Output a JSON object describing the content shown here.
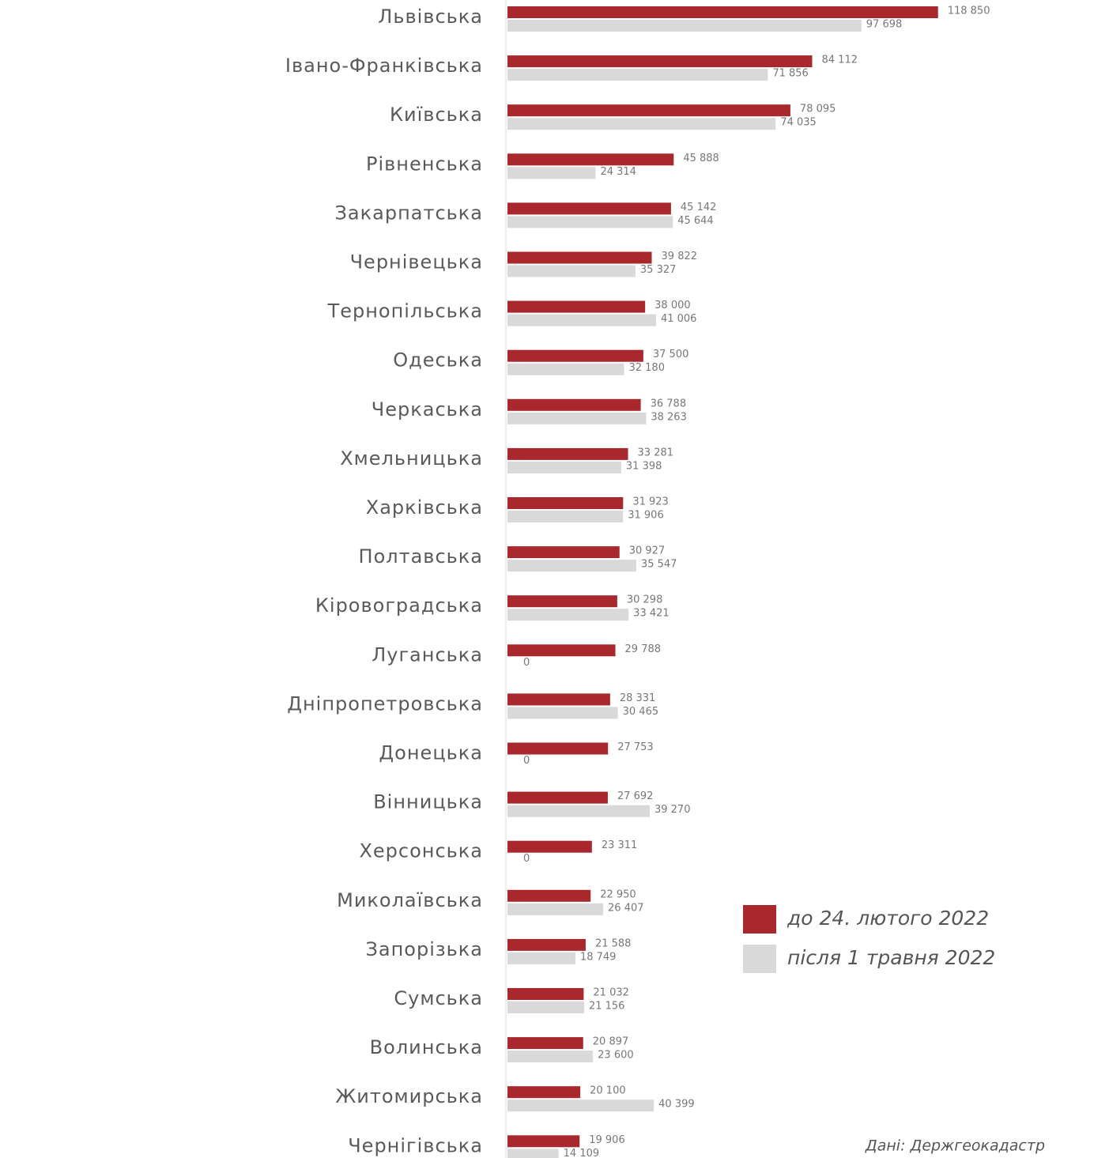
{
  "chart_data": {
    "type": "grouped-barh",
    "categories": [
      "Львівська",
      "Івано-Франківська",
      "Київська",
      "Рівненська",
      "Закарпатська",
      "Чернівецька",
      "Тернопільська",
      "Одеська",
      "Черкаська",
      "Хмельницька",
      "Харківська",
      "Полтавська",
      "Кіровоградська",
      "Луганська",
      "Дніпропетровська",
      "Донецька",
      "Вінницька",
      "Херсонська",
      "Миколаївська",
      "Запорізька",
      "Сумська",
      "Волинська",
      "Житомирська",
      "Чернігівська"
    ],
    "series": [
      {
        "name": "до 24. лютого 2022",
        "color": "#a8282d",
        "values": [
          118850,
          84112,
          78095,
          45888,
          45142,
          39822,
          38000,
          37500,
          36788,
          33281,
          31923,
          30927,
          30298,
          29788,
          28331,
          27753,
          27692,
          23311,
          22950,
          21588,
          21032,
          20897,
          20100,
          19906
        ],
        "value_labels": [
          "118 850",
          "84 112",
          "78 095",
          "45 888",
          "45 142",
          "39 822",
          "38 000",
          "37 500",
          "36 788",
          "33 281",
          "31 923",
          "30 927",
          "30 298",
          "29 788",
          "28 331",
          "27 753",
          "27 692",
          "23 311",
          "22 950",
          "21 588",
          "21 032",
          "20 897",
          "20 100",
          "19 906"
        ]
      },
      {
        "name": "після 1 травня 2022",
        "color": "#d9d9d9",
        "values": [
          97698,
          71856,
          74035,
          24314,
          45644,
          35327,
          41006,
          32180,
          38263,
          31398,
          31906,
          35547,
          33421,
          0,
          30465,
          0,
          39270,
          0,
          26407,
          18749,
          21156,
          23600,
          40399,
          14109
        ],
        "value_labels": [
          "97 698",
          "71 856",
          "74 035",
          "24 314",
          "45 644",
          "35 327",
          "41 006",
          "32 180",
          "38 263",
          "31 398",
          "31 906",
          "35 547",
          "33 421",
          "0",
          "30 465",
          "0",
          "39 270",
          "0",
          "26 407",
          "18 749",
          "21 156",
          "23 600",
          "40 399",
          "14 109"
        ]
      }
    ],
    "xlim": [
      0,
      120000
    ],
    "legend": "lower-right",
    "source": "Дані: Держгеокадастр"
  }
}
